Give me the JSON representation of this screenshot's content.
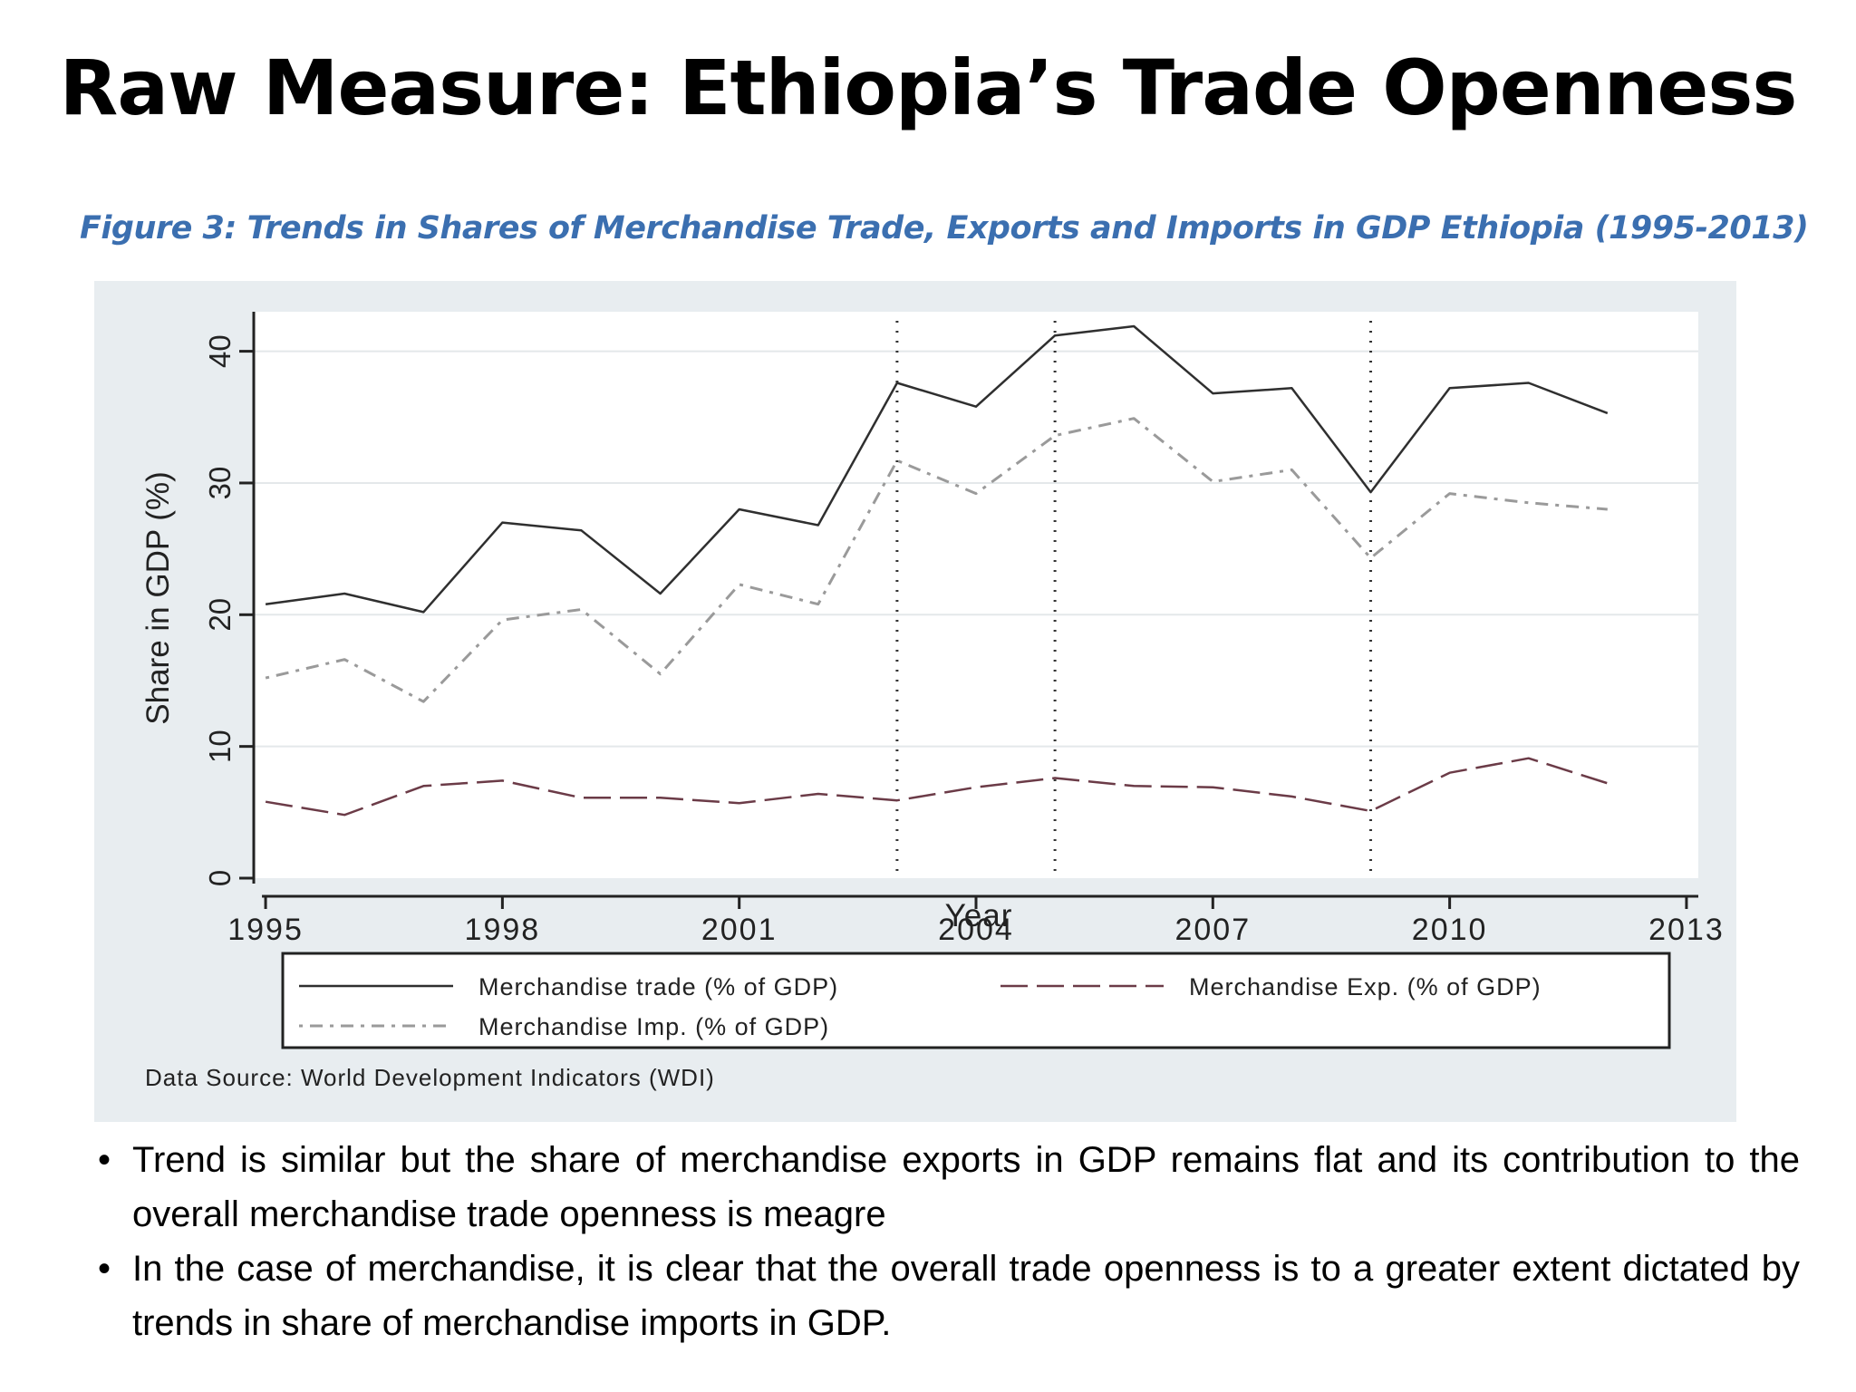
{
  "slide": {
    "title": "Raw Measure: Ethiopia’s Trade Openness",
    "figure_caption": "Figure 3: Trends in Shares of Merchandise Trade, Exports and Imports in GDP Ethiopia (1995-2013)",
    "bullets": [
      "Trend is similar but the share of merchandise exports in GDP remains flat and its contribution to the overall merchandise trade openness is meagre",
      "In the case of merchandise, it is clear that the overall trade openness is to a greater extent dictated by trends in share of merchandise imports in GDP."
    ],
    "bullet_glyph": "•"
  },
  "chart_data": {
    "type": "line",
    "title": "",
    "xlabel": "Year",
    "ylabel": "Share in GDP (%)",
    "xlim": [
      1994.85,
      2013.15
    ],
    "ylim": [
      0,
      43
    ],
    "xticks": [
      1995,
      1998,
      2001,
      2004,
      2007,
      2010,
      2013
    ],
    "yticks": [
      0,
      10,
      20,
      30,
      40
    ],
    "grid": true,
    "vlines": [
      2003,
      2005,
      2009
    ],
    "legend_placement": "bottom",
    "source_note": "Data Source: World Development Indicators (WDI)",
    "x": [
      1995,
      1996,
      1997,
      1998,
      1999,
      2000,
      2001,
      2002,
      2003,
      2004,
      2005,
      2006,
      2007,
      2008,
      2009,
      2010,
      2011,
      2012
    ],
    "series": [
      {
        "name": "Merchandise trade (% of GDP)",
        "style": "solid",
        "color": "#2f2f2f",
        "values": [
          20.8,
          21.6,
          20.2,
          27.0,
          26.4,
          21.6,
          28.0,
          26.8,
          37.6,
          35.8,
          41.2,
          41.9,
          36.8,
          37.2,
          29.3,
          37.2,
          37.6,
          35.3
        ]
      },
      {
        "name": "Merchandise Exp. (% of GDP)",
        "style": "dash",
        "color": "#6b3b47",
        "values": [
          5.8,
          4.8,
          7.0,
          7.4,
          6.1,
          6.1,
          5.7,
          6.4,
          5.9,
          6.9,
          7.6,
          7.0,
          6.9,
          6.2,
          5.1,
          8.0,
          9.1,
          7.2
        ]
      },
      {
        "name": "Merchandise Imp. (% of GDP)",
        "style": "dash-dot",
        "color": "#9a9a9a",
        "values": [
          15.2,
          16.6,
          13.4,
          19.6,
          20.4,
          15.5,
          22.3,
          20.8,
          31.7,
          29.2,
          33.6,
          34.9,
          30.1,
          31.0,
          24.3,
          29.2,
          28.5,
          28.0
        ]
      }
    ]
  }
}
